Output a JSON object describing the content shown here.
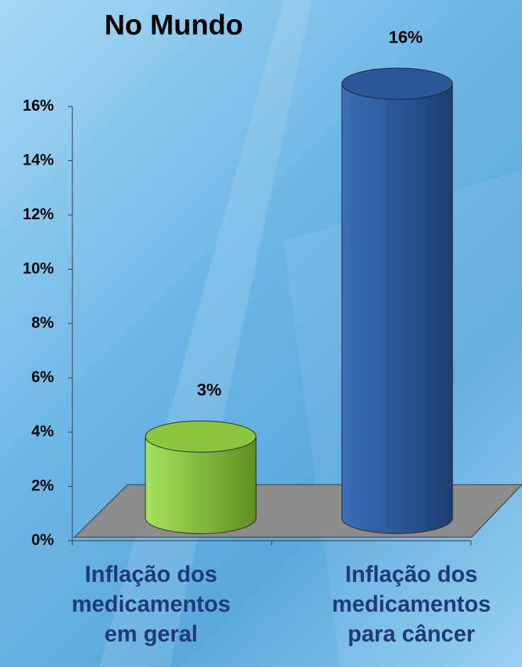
{
  "chart_data": {
    "type": "bar3d",
    "title": "No Mundo",
    "categories": [
      "Inflação dos medicamentos em geral",
      "Inflação dos medicamentos para câncer"
    ],
    "values": [
      3,
      16
    ],
    "value_labels": [
      "3%",
      "16%"
    ],
    "colors": [
      "#8cc63f",
      "#2a5898"
    ],
    "ylim": [
      0,
      16
    ],
    "yticks": [
      {
        "value": 0,
        "label": "0%"
      },
      {
        "value": 2,
        "label": "2%"
      },
      {
        "value": 4,
        "label": "4%"
      },
      {
        "value": 6,
        "label": "6%"
      },
      {
        "value": 8,
        "label": "8%"
      },
      {
        "value": 10,
        "label": "10%"
      },
      {
        "value": 12,
        "label": "12%"
      },
      {
        "value": 14,
        "label": "14%"
      },
      {
        "value": 16,
        "label": "16%"
      }
    ]
  }
}
